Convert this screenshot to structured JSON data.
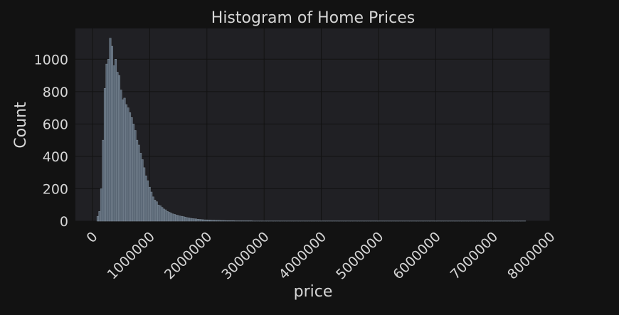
{
  "chart_data": {
    "type": "bar",
    "title": "Histogram of Home Prices",
    "xlabel": "price",
    "ylabel": "Count",
    "xlim": [
      -300000,
      8000000
    ],
    "ylim": [
      0,
      1190
    ],
    "xticks": [
      0,
      1000000,
      2000000,
      3000000,
      4000000,
      5000000,
      6000000,
      7000000,
      8000000
    ],
    "xtick_labels": [
      "0",
      "1000000",
      "2000000",
      "3000000",
      "4000000",
      "5000000",
      "6000000",
      "7000000",
      "8000000"
    ],
    "yticks": [
      0,
      200,
      400,
      600,
      800,
      1000
    ],
    "ytick_labels": [
      "0",
      "200",
      "400",
      "600",
      "800",
      "1000"
    ],
    "grid": true,
    "bin_width": 31250,
    "bin_start": 75000,
    "values": [
      30,
      60,
      200,
      500,
      820,
      970,
      1000,
      1130,
      1080,
      960,
      1000,
      920,
      900,
      810,
      750,
      760,
      720,
      700,
      670,
      640,
      600,
      560,
      500,
      470,
      420,
      380,
      330,
      280,
      250,
      210,
      180,
      150,
      130,
      120,
      100,
      95,
      85,
      75,
      70,
      60,
      55,
      50,
      45,
      42,
      38,
      35,
      32,
      30,
      28,
      25,
      22,
      20,
      18,
      16,
      15,
      14,
      12,
      11,
      10,
      9,
      8,
      8,
      7,
      7,
      6,
      6,
      5,
      5,
      5,
      4,
      4,
      4,
      3,
      3,
      3,
      3,
      3,
      2,
      2,
      2,
      2,
      2,
      2,
      2,
      2,
      2,
      2,
      1,
      1,
      1,
      1,
      1,
      1,
      1,
      1,
      1,
      1,
      1,
      1,
      1,
      1,
      1,
      1,
      1,
      1,
      1,
      1,
      1,
      1,
      1,
      1,
      1,
      1,
      1,
      1,
      1,
      1,
      1,
      1,
      1,
      1,
      1,
      1,
      1,
      1,
      1,
      1,
      1,
      1,
      1,
      1,
      1,
      1,
      1,
      1,
      1,
      1,
      1,
      1,
      1,
      1,
      1,
      1,
      1,
      1,
      1,
      1,
      1,
      1,
      1,
      1,
      1,
      1,
      1,
      1,
      1,
      1,
      1,
      1,
      1,
      1,
      1,
      1,
      1,
      1,
      1,
      1,
      1,
      1,
      1,
      1,
      1,
      1,
      1,
      1,
      1,
      1,
      1,
      1,
      1,
      1,
      1,
      1,
      1,
      1,
      1,
      1,
      1,
      1,
      1,
      1,
      1,
      1,
      1,
      1,
      1,
      1,
      1,
      1,
      1,
      1,
      1,
      1,
      1,
      1,
      1,
      1,
      1,
      1,
      1,
      1,
      1,
      1,
      1,
      1,
      1,
      1,
      1,
      1,
      1,
      1,
      1,
      1,
      1,
      1,
      1,
      1,
      1,
      1,
      1,
      1,
      1,
      1,
      1,
      1,
      1,
      1,
      1,
      1,
      1
    ],
    "colors": {
      "background": "#121212",
      "plot_background": "#202024",
      "bar_fill": "#5a6775",
      "bar_edge": "#7f8c99",
      "text": "#d6d6d6"
    }
  }
}
